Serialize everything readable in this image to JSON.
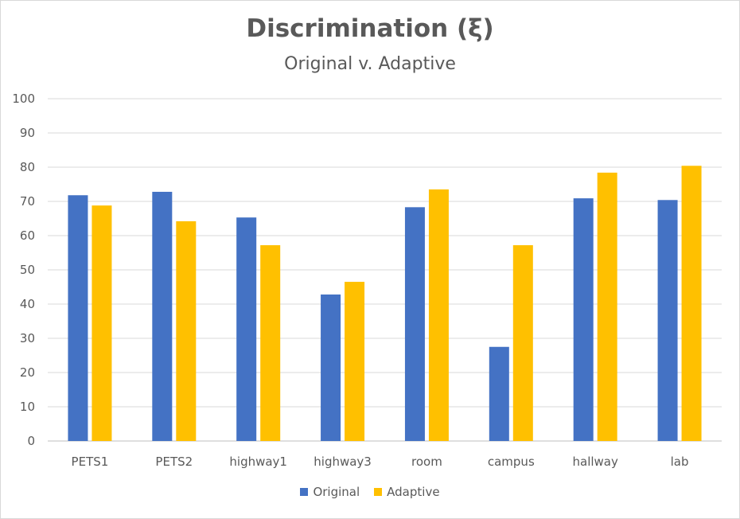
{
  "chart_data": {
    "type": "bar",
    "title": "Discrimination (ξ)",
    "subtitle": "Original v. Adaptive",
    "categories": [
      "PETS1",
      "PETS2",
      "highway1",
      "highway3",
      "room",
      "campus",
      "hallway",
      "lab"
    ],
    "series": [
      {
        "name": "Original",
        "color": "#4472C4",
        "values": [
          71.8,
          72.8,
          65.3,
          42.8,
          68.3,
          27.5,
          70.9,
          70.4
        ]
      },
      {
        "name": "Adaptive",
        "color": "#FFC000",
        "values": [
          68.8,
          64.2,
          57.2,
          46.5,
          73.5,
          57.2,
          78.4,
          80.4
        ]
      }
    ],
    "ylim": [
      0,
      100
    ],
    "yticks": [
      0,
      10,
      20,
      30,
      40,
      50,
      60,
      70,
      80,
      90,
      100
    ],
    "grid": true,
    "legend_position": "bottom"
  }
}
